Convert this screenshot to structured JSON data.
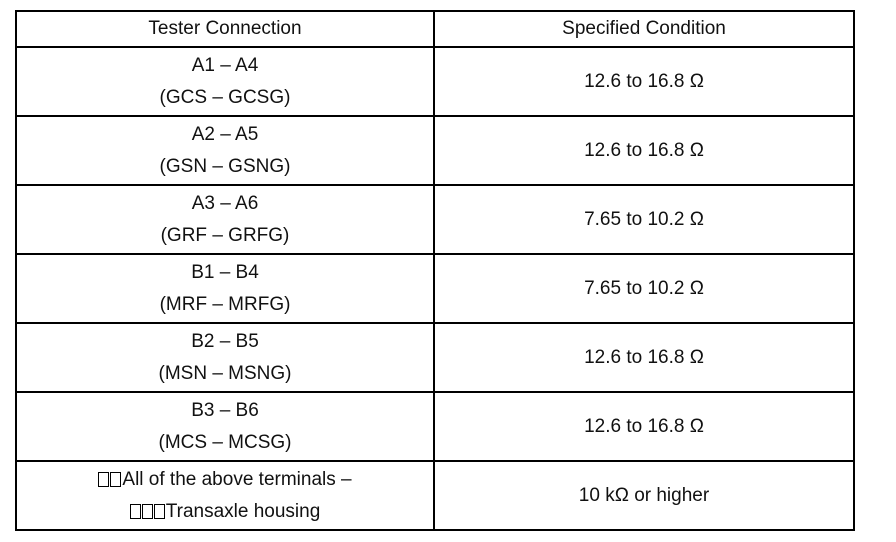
{
  "table": {
    "header": [
      "Tester Connection",
      "Specified Condition"
    ],
    "rows": [
      [
        [
          "A1 – A4",
          "(GCS – GCSG)"
        ],
        "12.6 to 16.8 Ω"
      ],
      [
        [
          "A2 – A5",
          "(GSN – GSNG)"
        ],
        "12.6 to 16.8 Ω"
      ],
      [
        [
          "A3 – A6",
          "(GRF – GRFG)"
        ],
        "7.65 to 10.2 Ω"
      ],
      [
        [
          "B1 – B4",
          "(MRF – MRFG)"
        ],
        "7.65 to 10.2 Ω"
      ],
      [
        [
          "B2 – B5",
          "(MSN – MSNG)"
        ],
        "12.6 to 16.8 Ω"
      ],
      [
        [
          "B3 – B6",
          "(MCS – MCSG)"
        ],
        "12.6 to 16.8 Ω"
      ],
      [
        [
          "All of the above terminals –",
          "Transaxle housing"
        ],
        "10 kΩ or higher"
      ]
    ]
  }
}
